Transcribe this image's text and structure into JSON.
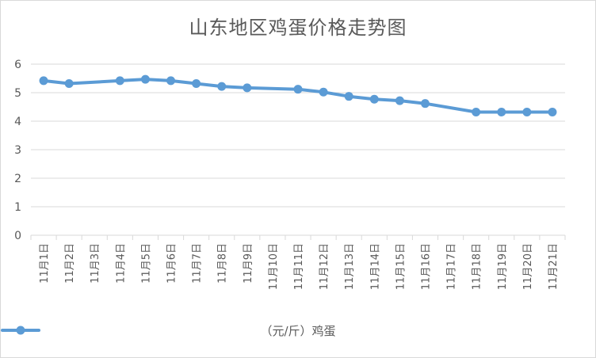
{
  "chart_data": {
    "type": "line",
    "title": "山东地区鸡蛋价格走势图",
    "categories": [
      "11月1日",
      "11月2日",
      "11月3日",
      "11月4日",
      "11月5日",
      "11月6日",
      "11月7日",
      "11月8日",
      "11月9日",
      "11月10日",
      "11月11日",
      "11月12日",
      "11月13日",
      "11月14日",
      "11月15日",
      "11月16日",
      "11月17日",
      "11月18日",
      "11月19日",
      "11月20日",
      "11月21日"
    ],
    "series": [
      {
        "name": "（元/斤）鸡蛋",
        "color": "#5b9bd5",
        "values": [
          5.42,
          5.32,
          null,
          5.42,
          5.47,
          5.42,
          5.32,
          5.22,
          5.17,
          null,
          5.12,
          5.02,
          4.87,
          4.77,
          4.72,
          4.62,
          null,
          4.32,
          4.32,
          4.32,
          4.32
        ]
      }
    ],
    "y_ticks": [
      "0",
      "1",
      "2",
      "3",
      "4",
      "5",
      "6"
    ],
    "ylim": [
      0,
      6
    ],
    "grid": true,
    "legend_position": "bottom"
  }
}
